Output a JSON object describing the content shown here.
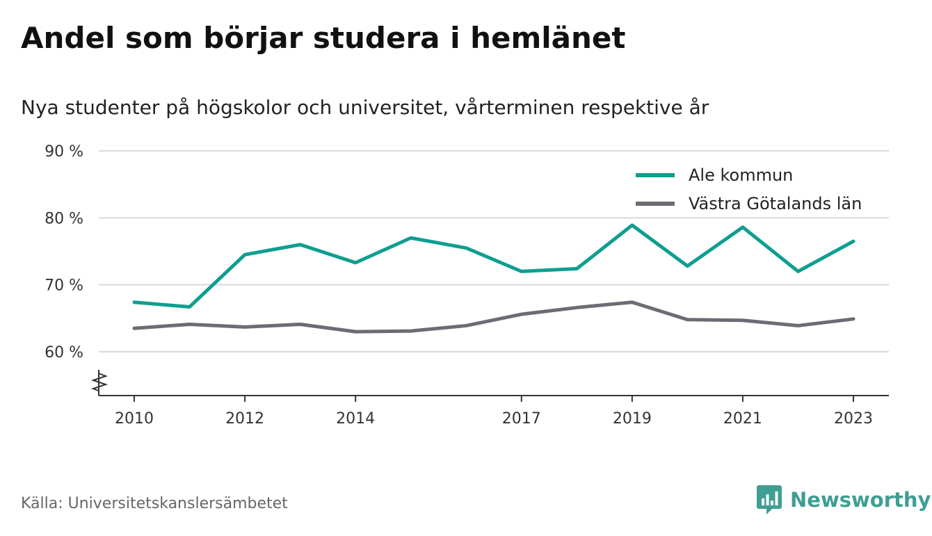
{
  "title": "Andel som börjar studera i hemlänet",
  "subtitle": "Nya studenter på högskolor och universitet, vårterminen respektive år",
  "source": "Källa: Universitetskanslersämbetet",
  "brand": {
    "name": "Newsworthy",
    "icon": "bar-chart-speech-bubble-icon",
    "color": "#3e9e94"
  },
  "chart_data": {
    "type": "line",
    "x": [
      2010,
      2011,
      2012,
      2013,
      2014,
      2015,
      2016,
      2017,
      2018,
      2019,
      2020,
      2021,
      2022,
      2023
    ],
    "x_tick_labels": [
      "2010",
      "2012",
      "2014",
      "2017",
      "2019",
      "2021",
      "2023"
    ],
    "x_ticks": [
      2010,
      2012,
      2014,
      2017,
      2019,
      2021,
      2023
    ],
    "y_ticks": [
      60,
      70,
      80,
      90
    ],
    "y_tick_labels": [
      "60 %",
      "70 %",
      "80 %",
      "90 %"
    ],
    "ylim": [
      54,
      90
    ],
    "y_axis_break": true,
    "grid": true,
    "legend_position": "top-right",
    "series": [
      {
        "name": "Ale kommun",
        "color": "#0e9e91",
        "values": [
          67.4,
          66.7,
          74.5,
          76.0,
          73.3,
          77.0,
          75.5,
          72.0,
          72.4,
          78.9,
          72.8,
          78.6,
          72.0,
          76.5
        ]
      },
      {
        "name": "Västra Götalands län",
        "color": "#6d6b73",
        "values": [
          63.5,
          64.1,
          63.7,
          64.1,
          63.0,
          63.1,
          63.9,
          65.6,
          66.6,
          67.4,
          64.8,
          64.7,
          63.9,
          64.9
        ]
      }
    ]
  }
}
